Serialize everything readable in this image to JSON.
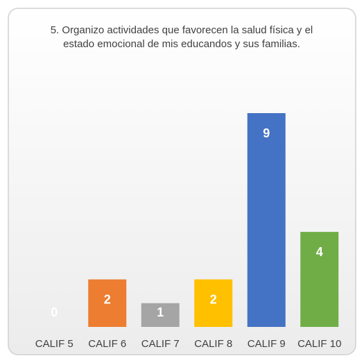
{
  "chart_data": {
    "type": "bar",
    "title": "5. Organizo actividades que favorecen la salud física y el estado emocional de mis educandos y sus familias.",
    "categories": [
      "CALIF 5",
      "CALIF 6",
      "CALIF 7",
      "CALIF 8",
      "CALIF 9",
      "CALIF 10"
    ],
    "values": [
      0,
      2,
      1,
      2,
      9,
      4
    ],
    "colors": [
      "#5b9bd5",
      "#ed7d31",
      "#a5a5a5",
      "#ffc000",
      "#4472c4",
      "#70ad47"
    ],
    "ylim": [
      0,
      9
    ]
  }
}
